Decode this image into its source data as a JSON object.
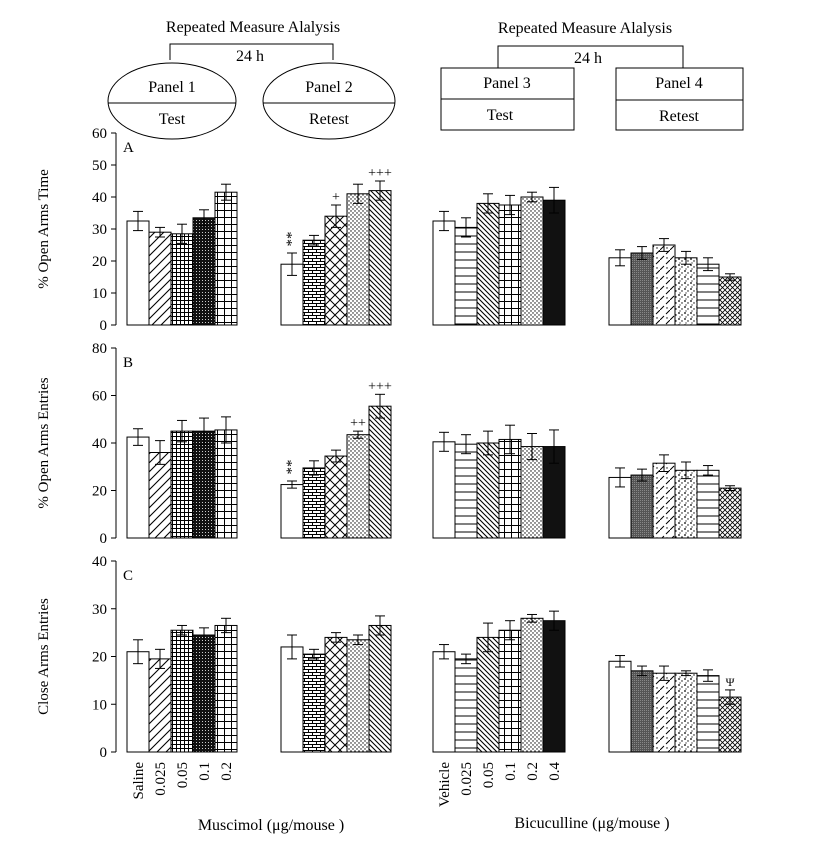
{
  "header": {
    "left_title": "Repeated Measure Alalysis",
    "left_interval": "24 h",
    "panel1": {
      "name": "Panel 1",
      "sub": "Test"
    },
    "panel2": {
      "name": "Panel 2",
      "sub": "Retest"
    },
    "right_title": "Repeated Measure Alalysis",
    "right_interval": "24 h",
    "panel3": {
      "name": "Panel 3",
      "sub": "Test"
    },
    "panel4": {
      "name": "Panel 4",
      "sub": "Retest"
    }
  },
  "xaxis": {
    "muscimol_label": "Muscimol (μg/mouse )",
    "bicuculline_label": "Bicuculline (μg/mouse )",
    "muscimol_ticks": [
      "Saline",
      "0.025",
      "0.05",
      "0.1",
      "0.2"
    ],
    "bicuculline_ticks": [
      "Vehicle",
      "0.025",
      "0.05",
      "0.1",
      "0.2",
      "0.4"
    ]
  },
  "chart_data": [
    {
      "type": "bar",
      "letter": "A",
      "ylabel": "% Open Arms Time",
      "ylim": [
        0,
        60
      ],
      "yticks": [
        0,
        10,
        20,
        30,
        40,
        50,
        60
      ],
      "groups": [
        {
          "panel": "Panel 1",
          "categories": [
            "Saline",
            "0.025",
            "0.05",
            "0.1",
            "0.2"
          ],
          "values": [
            32.5,
            29,
            28.5,
            33.5,
            41.5
          ],
          "errors": [
            3,
            1.5,
            3,
            2.5,
            2.5
          ],
          "labels": [
            "",
            "",
            "",
            "",
            ""
          ]
        },
        {
          "panel": "Panel 2",
          "categories": [
            "Saline",
            "0.025",
            "0.05",
            "0.1",
            "0.2"
          ],
          "values": [
            19,
            26.5,
            34,
            41,
            42
          ],
          "errors": [
            3.5,
            1.5,
            3.5,
            3,
            3
          ],
          "labels": [
            "**",
            "",
            "+",
            "",
            "+++"
          ]
        },
        {
          "panel": "Panel 3",
          "categories": [
            "Vehicle",
            "0.025",
            "0.05",
            "0.1",
            "0.2",
            "0.4"
          ],
          "values": [
            32.5,
            30.5,
            38,
            37.5,
            40,
            39
          ],
          "errors": [
            3,
            3,
            3,
            3,
            1.5,
            4
          ],
          "labels": [
            "",
            "",
            "",
            "",
            "",
            ""
          ]
        },
        {
          "panel": "Panel 4",
          "categories": [
            "Vehicle",
            "0.025",
            "0.05",
            "0.1",
            "0.2",
            "0.4"
          ],
          "values": [
            21,
            22.5,
            25,
            21,
            19,
            15
          ],
          "errors": [
            2.5,
            2,
            2,
            2,
            2,
            1
          ],
          "labels": [
            "",
            "",
            "",
            "",
            "",
            ""
          ]
        }
      ]
    },
    {
      "type": "bar",
      "letter": "B",
      "ylabel": "% Open Arms Entries",
      "ylim": [
        0,
        80
      ],
      "yticks": [
        0,
        20,
        40,
        60,
        80
      ],
      "groups": [
        {
          "panel": "Panel 1",
          "categories": [
            "Saline",
            "0.025",
            "0.05",
            "0.1",
            "0.2"
          ],
          "values": [
            42.5,
            36,
            45,
            45,
            45.5
          ],
          "errors": [
            3.5,
            5,
            4.5,
            5.5,
            5.5
          ],
          "labels": [
            "",
            "",
            "",
            "",
            ""
          ]
        },
        {
          "panel": "Panel 2",
          "categories": [
            "Saline",
            "0.025",
            "0.05",
            "0.1",
            "0.2"
          ],
          "values": [
            22.5,
            29.5,
            34.5,
            43.5,
            55.5
          ],
          "errors": [
            1.5,
            3,
            2.5,
            1.5,
            5
          ],
          "labels": [
            "**",
            "",
            "",
            "++",
            "+++"
          ]
        },
        {
          "panel": "Panel 3",
          "categories": [
            "Vehicle",
            "0.025",
            "0.05",
            "0.1",
            "0.2",
            "0.4"
          ],
          "values": [
            40.5,
            39.5,
            40,
            41.5,
            38.5,
            38.5
          ],
          "errors": [
            4,
            4,
            5,
            6,
            5.5,
            7
          ],
          "labels": [
            "",
            "",
            "",
            "",
            "",
            ""
          ]
        },
        {
          "panel": "Panel 4",
          "categories": [
            "Vehicle",
            "0.025",
            "0.05",
            "0.1",
            "0.2",
            "0.4"
          ],
          "values": [
            25.5,
            26.5,
            31.5,
            28.5,
            28.5,
            21
          ],
          "errors": [
            4,
            2.5,
            3.5,
            3.5,
            2,
            1
          ],
          "labels": [
            "",
            "",
            "",
            "",
            "",
            ""
          ]
        }
      ]
    },
    {
      "type": "bar",
      "letter": "C",
      "ylabel": "Close Arms Entries",
      "ylim": [
        0,
        40
      ],
      "yticks": [
        0,
        10,
        20,
        30,
        40
      ],
      "groups": [
        {
          "panel": "Panel 1",
          "categories": [
            "Saline",
            "0.025",
            "0.05",
            "0.1",
            "0.2"
          ],
          "values": [
            21,
            19.5,
            25.5,
            24.5,
            26.5
          ],
          "errors": [
            2.5,
            2,
            1,
            1.5,
            1.5
          ],
          "labels": [
            "",
            "",
            "",
            "",
            ""
          ]
        },
        {
          "panel": "Panel 2",
          "categories": [
            "Saline",
            "0.025",
            "0.05",
            "0.1",
            "0.2"
          ],
          "values": [
            22,
            20.5,
            24,
            23.5,
            26.5
          ],
          "errors": [
            2.5,
            1,
            1,
            1,
            2
          ],
          "labels": [
            "",
            "",
            "",
            "",
            ""
          ]
        },
        {
          "panel": "Panel 3",
          "categories": [
            "Vehicle",
            "0.025",
            "0.05",
            "0.1",
            "0.2",
            "0.4"
          ],
          "values": [
            21,
            19.5,
            24,
            25.5,
            28,
            27.5
          ],
          "errors": [
            1.5,
            1,
            3,
            2,
            0.8,
            2
          ],
          "labels": [
            "",
            "",
            "",
            "",
            "",
            ""
          ]
        },
        {
          "panel": "Panel 4",
          "categories": [
            "Vehicle",
            "0.025",
            "0.05",
            "0.1",
            "0.2",
            "0.4"
          ],
          "values": [
            19,
            17,
            16.5,
            16.5,
            16,
            11.5
          ],
          "errors": [
            1.2,
            1,
            1.5,
            0.5,
            1.2,
            1.5
          ],
          "labels": [
            "",
            "",
            "",
            "",
            "",
            "Ψ"
          ]
        }
      ]
    }
  ]
}
